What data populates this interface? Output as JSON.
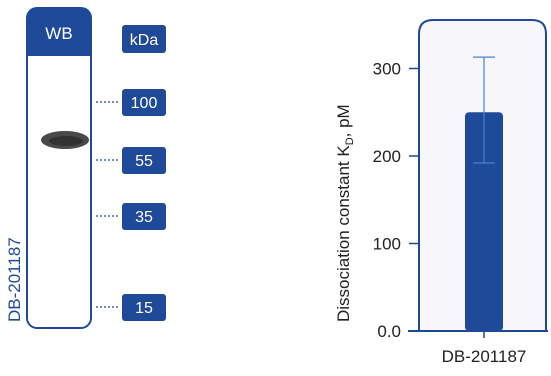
{
  "western_blot": {
    "header_label": "WB",
    "units_label": "kDa",
    "sample_label": "DB-201187",
    "ladder": [
      "100",
      "55",
      "35",
      "15"
    ],
    "band_kda": 62,
    "colors": {
      "brand": "#1f4a99",
      "band": "#3a3a3a",
      "tab_text": "#ffffff"
    }
  },
  "chart_data": {
    "type": "bar",
    "categories": [
      "DB-201187"
    ],
    "values": [
      250
    ],
    "errors": [
      {
        "low": 192,
        "high": 313
      }
    ],
    "title": "",
    "xlabel": "",
    "ylabel": "Dissociation constant K",
    "ylabel_sub": "D",
    "ylabel_tail": ", pM",
    "ylim": [
      0,
      360
    ],
    "yticks": [
      "0.0",
      "100",
      "200",
      "300"
    ],
    "ytick_values": [
      0,
      100,
      200,
      300
    ],
    "grid": false,
    "colors": {
      "bar": "#1f4a99",
      "panel_bg": "#f7f7f9",
      "error_bar": "#4a7fd4",
      "frame": "#1f4a99"
    }
  }
}
